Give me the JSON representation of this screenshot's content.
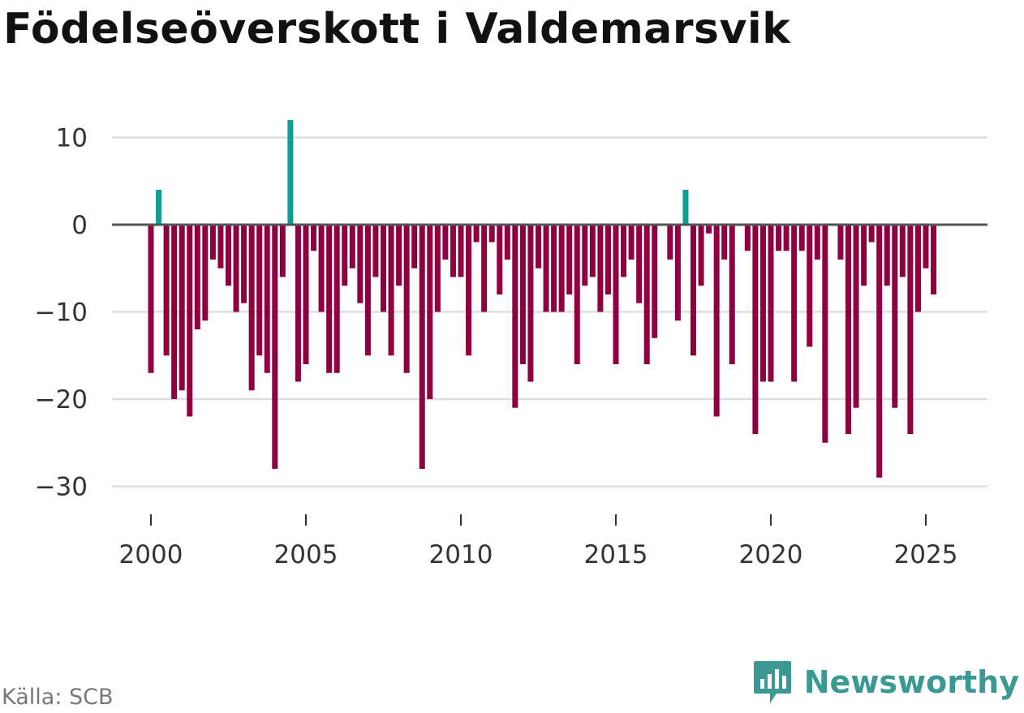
{
  "chart_data": {
    "type": "bar",
    "title": "Födelseöverskott i Valdemarsvik",
    "xlabel": "",
    "ylabel": "",
    "x_start": 2000.0,
    "x_step": 0.25,
    "values": [
      -17,
      4,
      -15,
      -20,
      -19,
      -22,
      -12,
      -11,
      -4,
      -5,
      -7,
      -10,
      -9,
      -19,
      -15,
      -17,
      -28,
      -6,
      12,
      -18,
      -16,
      -3,
      -10,
      -17,
      -17,
      -7,
      -5,
      -9,
      -15,
      -6,
      -10,
      -15,
      -7,
      -17,
      -5,
      -28,
      -20,
      -10,
      -4,
      -6,
      -6,
      -15,
      -2,
      -10,
      -2,
      -8,
      -4,
      -21,
      -16,
      -18,
      -5,
      -10,
      -10,
      -10,
      -8,
      -16,
      -7,
      -6,
      -10,
      -8,
      -16,
      -6,
      -4,
      -9,
      -16,
      -13,
      0,
      -4,
      -11,
      4,
      -15,
      -7,
      -1,
      -22,
      -4,
      -16,
      0,
      -3,
      -24,
      -18,
      -18,
      -3,
      -3,
      -18,
      -3,
      -14,
      -4,
      -25,
      0,
      -4,
      -24,
      -21,
      -7,
      -2,
      -29,
      -7,
      -21,
      -6,
      -24,
      -10,
      -5,
      -8
    ],
    "ylim": [
      -30,
      12
    ],
    "yticks": [
      10,
      0,
      -10,
      -20,
      -30
    ],
    "ytick_labels": [
      "10",
      "0",
      "−10",
      "−20",
      "−30"
    ],
    "xticks": [
      2000,
      2005,
      2010,
      2015,
      2020,
      2025
    ],
    "xtick_labels": [
      "2000",
      "2005",
      "2010",
      "2015",
      "2020",
      "2025"
    ],
    "colors": {
      "positive": "#0e9e94",
      "negative": "#8e0040",
      "grid": "#dddddd",
      "zero_line": "#555555"
    },
    "grid": true,
    "legend": "none"
  },
  "footer": {
    "source": "Källa: SCB",
    "brand": "Newsworthy",
    "brand_color": "#3a9a93",
    "brand_icon": "bar-chart-speech-bubble-icon"
  }
}
